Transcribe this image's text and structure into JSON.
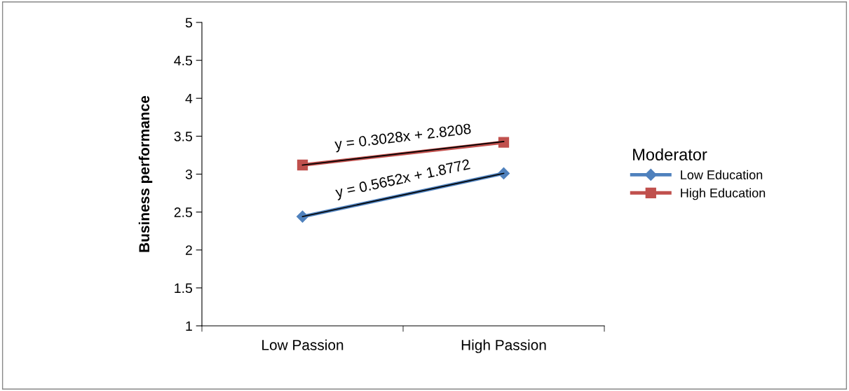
{
  "chart_data": {
    "type": "line",
    "ylabel": "Business performance",
    "legend_title": "Moderator",
    "categories": [
      "Low Passion",
      "High Passion"
    ],
    "series": [
      {
        "name": "Low Education",
        "color": "#4f81bd",
        "values": [
          2.44,
          3.01
        ],
        "marker": "diamond"
      },
      {
        "name": "High Education",
        "color": "#c0504d",
        "values": [
          3.12,
          3.42
        ],
        "marker": "square"
      },
      {
        "type": "line",
        "color": "#000000",
        "values": [
          2.44,
          3.01
        ],
        "marker": "none"
      },
      {
        "type": "line",
        "color": "#000000",
        "values": [
          3.12,
          3.43
        ],
        "marker": "none"
      }
    ],
    "annotations": [
      "y = 0.5652x + 1.8772",
      "y = 0.3028x + 2.8208"
    ],
    "ylim": [
      1,
      5
    ],
    "yticks": [
      1,
      1.5,
      2,
      2.5,
      3,
      3.5,
      4,
      4.5,
      5
    ],
    "grid": false,
    "legend": "right"
  }
}
